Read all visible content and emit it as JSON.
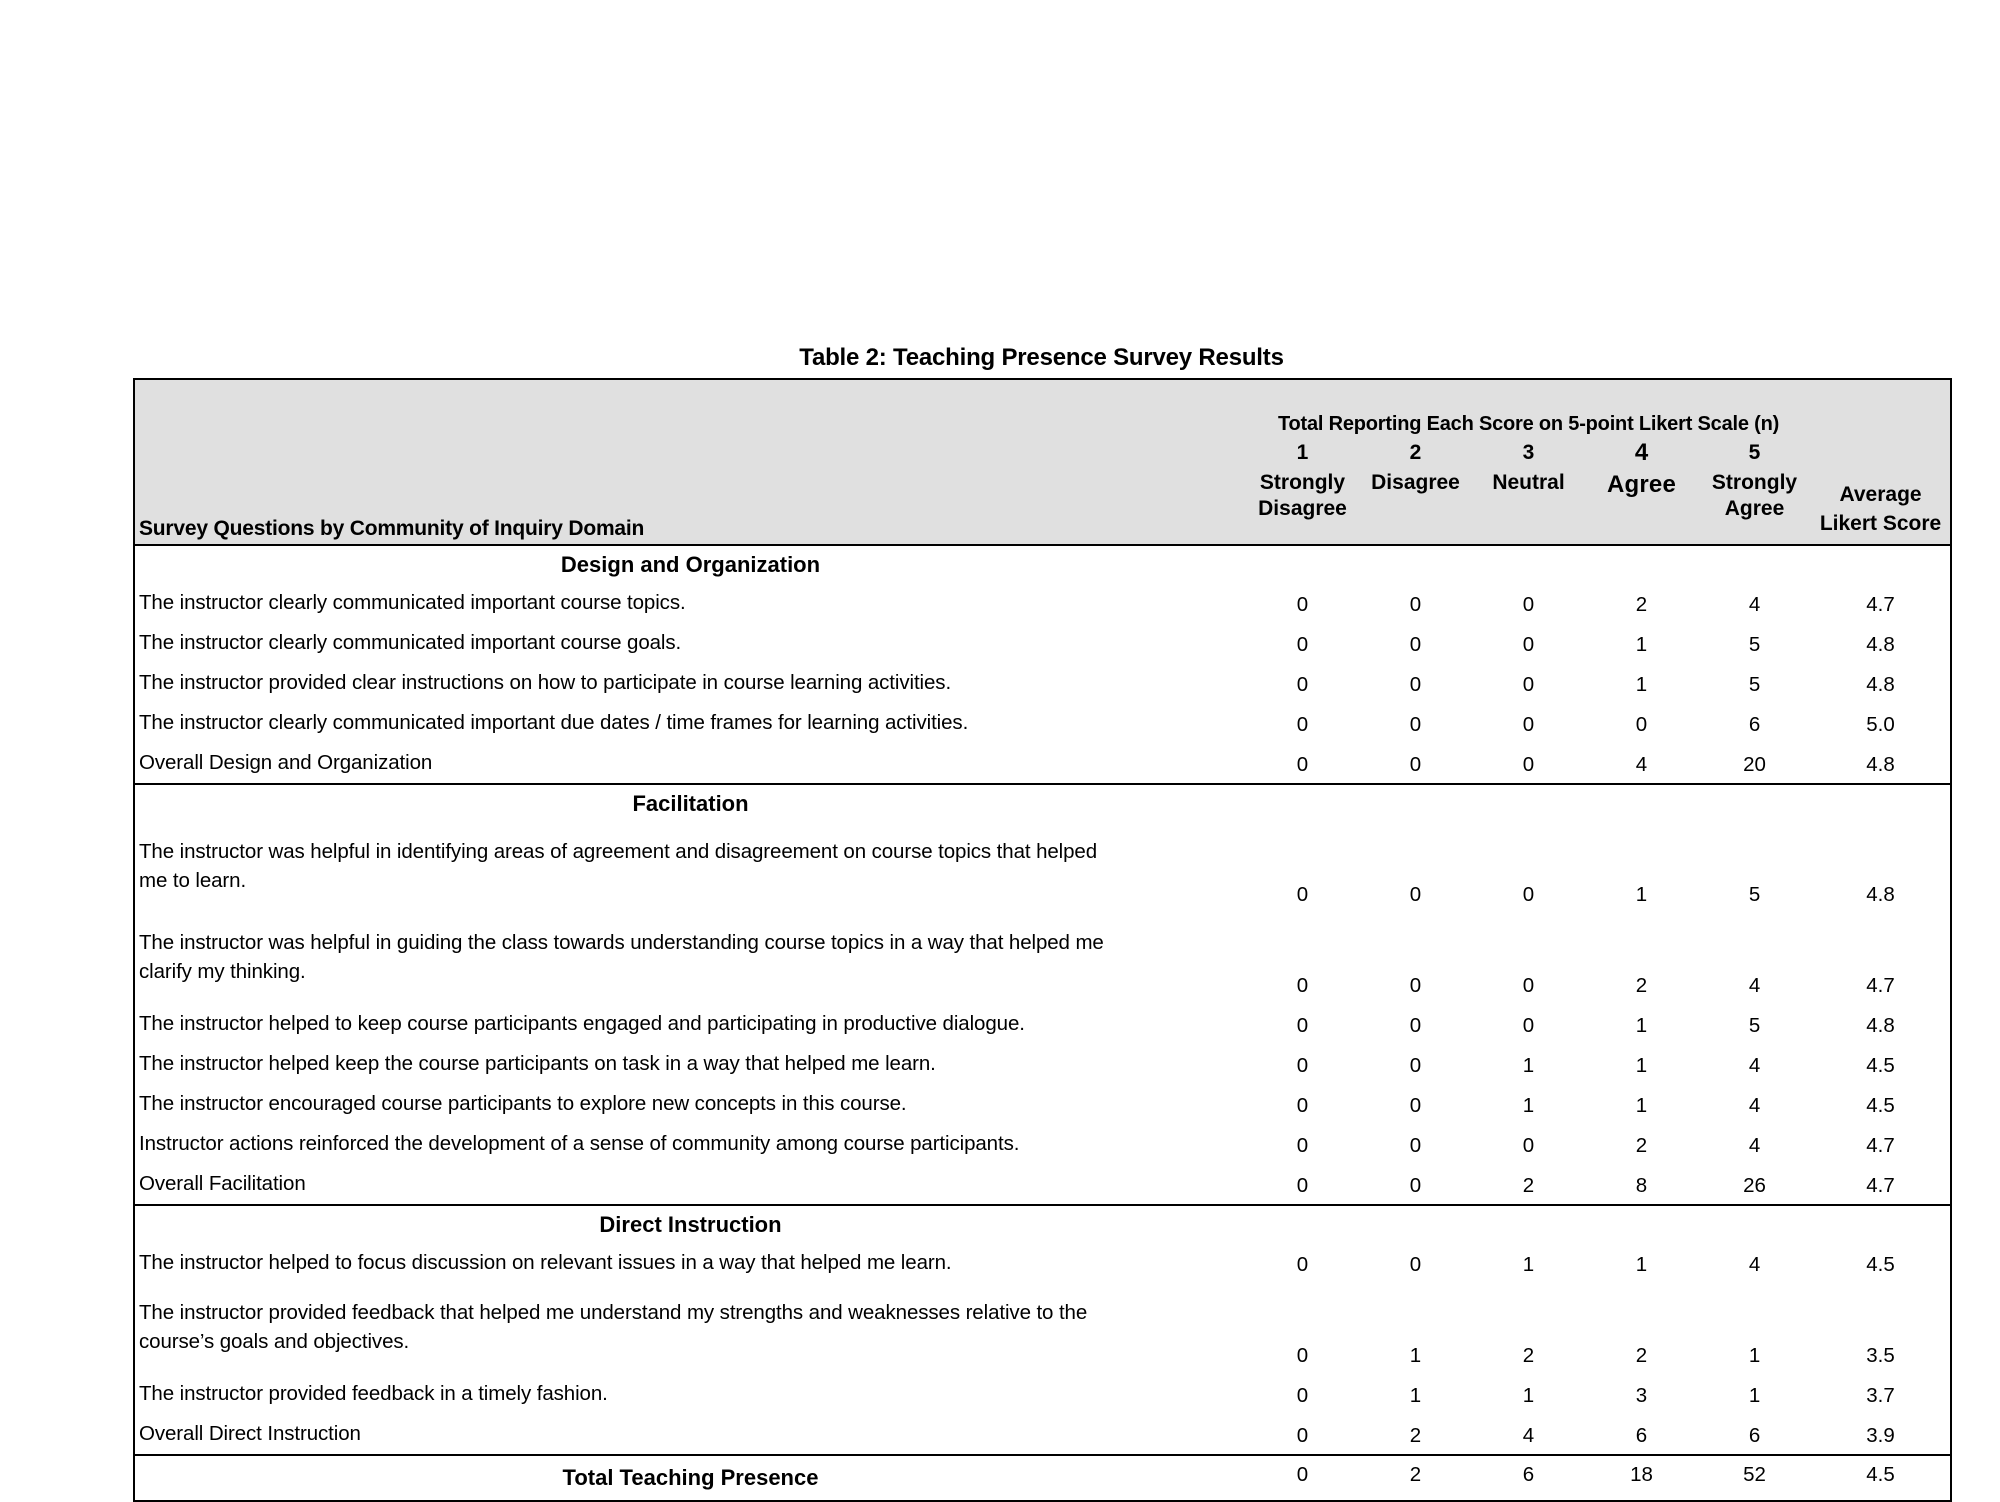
{
  "colors": {
    "header_bg": "#e0e0e0",
    "border": "#000000",
    "text": "#000000"
  },
  "title": "Table 2: Teaching Presence Survey Results",
  "table": {
    "question_column_header": "Survey Questions by Community of Inquiry Domain",
    "scale_group_header": "Total Reporting Each Score on 5-point Likert Scale (n)",
    "score_columns": [
      {
        "number": "1",
        "label": "Strongly Disagree",
        "emphasized": false
      },
      {
        "number": "2",
        "label": "Disagree",
        "emphasized": false
      },
      {
        "number": "3",
        "label": "Neutral",
        "emphasized": false
      },
      {
        "number": "4",
        "label": "Agree",
        "emphasized": true
      },
      {
        "number": "5",
        "label": "Strongly Agree",
        "emphasized": false
      }
    ],
    "average_column_header": "Average Likert Score",
    "sections": [
      {
        "name": "Design and Organization",
        "rows": [
          {
            "question": "The instructor clearly communicated important course topics.",
            "tall": false,
            "values": [
              "0",
              "0",
              "0",
              "2",
              "4",
              "4.7"
            ]
          },
          {
            "question": "The instructor clearly communicated important course goals.",
            "tall": false,
            "values": [
              "0",
              "0",
              "0",
              "1",
              "5",
              "4.8"
            ]
          },
          {
            "question": "The instructor provided clear instructions on how to participate in course learning activities.",
            "tall": false,
            "values": [
              "0",
              "0",
              "0",
              "1",
              "5",
              "4.8"
            ]
          },
          {
            "question": "The instructor clearly communicated important due dates / time frames for learning activities.",
            "tall": false,
            "values": [
              "0",
              "0",
              "0",
              "0",
              "6",
              "5.0"
            ]
          },
          {
            "question": "Overall Design and Organization",
            "tall": false,
            "values": [
              "0",
              "0",
              "0",
              "4",
              "20",
              "4.8"
            ]
          }
        ]
      },
      {
        "name": "Facilitation",
        "rows": [
          {
            "question": "The instructor was helpful in identifying areas of agreement and disagreement on course topics that helped\nme to learn.",
            "tall": true,
            "values": [
              "0",
              "0",
              "0",
              "1",
              "5",
              "4.8"
            ]
          },
          {
            "question": "The instructor was helpful in guiding the class towards understanding course topics in a way that helped me\nclarify my thinking.",
            "tall": true,
            "values": [
              "0",
              "0",
              "0",
              "2",
              "4",
              "4.7"
            ]
          },
          {
            "question": "The instructor helped to keep course participants engaged and participating in productive dialogue.",
            "tall": false,
            "values": [
              "0",
              "0",
              "0",
              "1",
              "5",
              "4.8"
            ]
          },
          {
            "question": "The instructor helped keep the course participants on task in a way that helped me learn.",
            "tall": false,
            "values": [
              "0",
              "0",
              "1",
              "1",
              "4",
              "4.5"
            ]
          },
          {
            "question": "The instructor encouraged course participants to explore new concepts in this course.",
            "tall": false,
            "values": [
              "0",
              "0",
              "1",
              "1",
              "4",
              "4.5"
            ]
          },
          {
            "question": "Instructor actions reinforced the development of a sense of community among course participants.",
            "tall": false,
            "values": [
              "0",
              "0",
              "0",
              "2",
              "4",
              "4.7"
            ]
          },
          {
            "question": "Overall Facilitation",
            "tall": false,
            "values": [
              "0",
              "0",
              "2",
              "8",
              "26",
              "4.7"
            ]
          }
        ]
      },
      {
        "name": "Direct Instruction",
        "rows": [
          {
            "question": "The instructor helped to focus discussion on relevant issues in a way that helped me learn.",
            "tall": false,
            "values": [
              "0",
              "0",
              "1",
              "1",
              "4",
              "4.5"
            ]
          },
          {
            "question": "The instructor provided feedback that helped me understand my strengths and weaknesses relative to the\ncourse’s goals and objectives.",
            "tall": true,
            "values": [
              "0",
              "1",
              "2",
              "2",
              "1",
              "3.5"
            ]
          },
          {
            "question": "The instructor provided feedback in a timely fashion.",
            "tall": false,
            "values": [
              "0",
              "1",
              "1",
              "3",
              "1",
              "3.7"
            ]
          },
          {
            "question": "Overall Direct Instruction",
            "tall": false,
            "values": [
              "0",
              "2",
              "4",
              "6",
              "6",
              "3.9"
            ]
          }
        ]
      }
    ],
    "total_row": {
      "label": "Total Teaching Presence",
      "values": [
        "0",
        "2",
        "6",
        "18",
        "52",
        "4.5"
      ]
    }
  }
}
